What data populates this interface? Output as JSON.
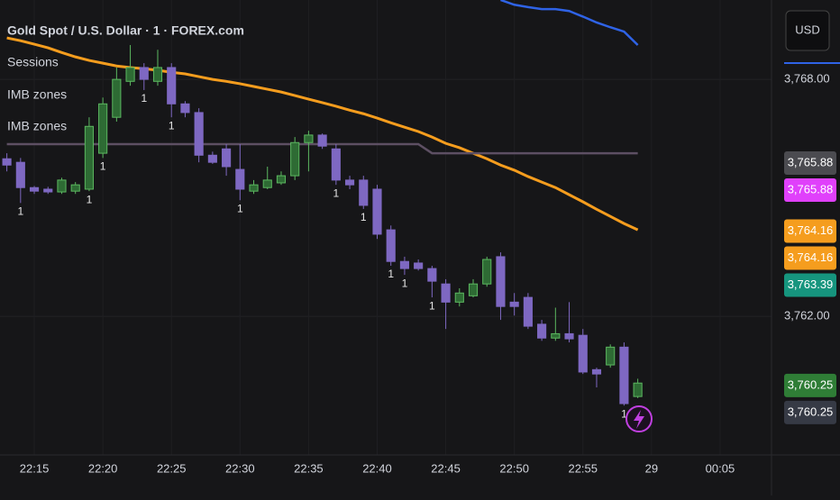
{
  "chart_data": {
    "type": "candlestick",
    "title": "Gold Spot / U.S. Dollar · 1 · FOREX.com",
    "legend_items": [
      "Sessions",
      "IMB zones",
      "IMB zones"
    ],
    "currency": "USD",
    "up_color": "#2e6b34",
    "up_border": "#5cb860",
    "down_color": "#7e68c2",
    "x": [
      13,
      14,
      15,
      16,
      17,
      18,
      19,
      20,
      21,
      22,
      23,
      24,
      25,
      26,
      27,
      28,
      29,
      30,
      31,
      32,
      33,
      34,
      35,
      36,
      37,
      38,
      39,
      40,
      41,
      42,
      43,
      44,
      45,
      46,
      47,
      48,
      49,
      50,
      51,
      52,
      53,
      54,
      55,
      56,
      57,
      58,
      59
    ],
    "open": [
      3765.99,
      3765.9,
      3765.26,
      3765.22,
      3765.15,
      3765.17,
      3765.22,
      3766.13,
      3767.04,
      3767.95,
      3768.3,
      3767.95,
      3768.3,
      3767.38,
      3767.16,
      3766.08,
      3766.24,
      3765.72,
      3765.17,
      3765.26,
      3765.38,
      3765.56,
      3766.4,
      3766.59,
      3766.24,
      3765.45,
      3765.45,
      3765.22,
      3764.19,
      3763.39,
      3763.35,
      3763.21,
      3762.82,
      3762.36,
      3762.52,
      3762.82,
      3763.51,
      3762.36,
      3762.48,
      3761.8,
      3761.45,
      3761.56,
      3761.52,
      3760.65,
      3760.77,
      3761.22,
      3759.97
    ],
    "high": [
      3766.13,
      3766.01,
      3765.3,
      3765.28,
      3765.51,
      3765.4,
      3767.04,
      3767.54,
      3768.3,
      3768.87,
      3768.41,
      3768.75,
      3768.41,
      3767.45,
      3767.27,
      3766.17,
      3766.36,
      3766.36,
      3765.45,
      3765.79,
      3765.67,
      3766.54,
      3766.7,
      3766.63,
      3766.36,
      3765.56,
      3765.56,
      3765.33,
      3764.3,
      3763.51,
      3763.44,
      3763.28,
      3762.94,
      3762.71,
      3762.94,
      3763.51,
      3763.62,
      3762.59,
      3762.59,
      3761.91,
      3762.22,
      3762.36,
      3761.68,
      3760.7,
      3761.29,
      3761.34,
      3760.42
    ],
    "low": [
      3765.67,
      3764.87,
      3765.1,
      3765.1,
      3765.1,
      3765.1,
      3765.17,
      3766.01,
      3766.93,
      3767.84,
      3767.73,
      3767.84,
      3767.04,
      3767.04,
      3765.9,
      3765.86,
      3765.56,
      3764.94,
      3765.1,
      3765.22,
      3765.33,
      3765.45,
      3765.67,
      3766.24,
      3765.33,
      3765.22,
      3764.72,
      3763.96,
      3763.28,
      3763.05,
      3763.16,
      3762.48,
      3761.68,
      3762.25,
      3762.48,
      3762.75,
      3761.91,
      3762.02,
      3761.68,
      3761.38,
      3761.38,
      3761.34,
      3760.54,
      3760.2,
      3760.7,
      3759.74,
      3759.93
    ],
    "close": [
      3765.83,
      3765.26,
      3765.17,
      3765.15,
      3765.45,
      3765.33,
      3766.81,
      3767.38,
      3768.0,
      3768.3,
      3768.0,
      3768.3,
      3767.38,
      3767.16,
      3766.08,
      3765.9,
      3765.79,
      3765.22,
      3765.33,
      3765.45,
      3765.56,
      3766.4,
      3766.59,
      3766.31,
      3765.45,
      3765.33,
      3764.81,
      3764.08,
      3763.39,
      3763.21,
      3763.21,
      3762.89,
      3762.36,
      3762.59,
      3762.82,
      3763.44,
      3762.25,
      3762.25,
      3761.75,
      3761.45,
      3761.56,
      3761.43,
      3760.59,
      3760.54,
      3761.22,
      3759.79,
      3760.31
    ],
    "lines": [
      {
        "color": "#f59d1e",
        "values": [
          3769.05,
          3768.98,
          3768.89,
          3768.8,
          3768.68,
          3768.57,
          3768.48,
          3768.41,
          3768.34,
          3768.3,
          3768.27,
          3768.23,
          3768.18,
          3768.14,
          3768.07,
          3768.0,
          3767.95,
          3767.89,
          3767.82,
          3767.75,
          3767.68,
          3767.59,
          3767.5,
          3767.41,
          3767.32,
          3767.22,
          3767.13,
          3767.02,
          3766.9,
          3766.79,
          3766.68,
          3766.54,
          3766.38,
          3766.27,
          3766.13,
          3765.99,
          3765.83,
          3765.7,
          3765.54,
          3765.4,
          3765.26,
          3765.08,
          3764.9,
          3764.71,
          3764.53,
          3764.35,
          3764.19
        ]
      },
      {
        "color": "#5d4f63",
        "values": [
          3766.36,
          3766.36,
          3766.36,
          3766.36,
          3766.36,
          3766.36,
          3766.36,
          3766.36,
          3766.36,
          3766.36,
          3766.36,
          3766.36,
          3766.36,
          3766.36,
          3766.36,
          3766.36,
          3766.36,
          3766.36,
          3766.36,
          3766.36,
          3766.36,
          3766.36,
          3766.36,
          3766.36,
          3766.36,
          3766.36,
          3766.36,
          3766.36,
          3766.36,
          3766.36,
          3766.36,
          3766.13,
          3766.13,
          3766.13,
          3766.13,
          3766.13,
          3766.13,
          3766.13,
          3766.13,
          3766.13,
          3766.13,
          3766.13,
          3766.13,
          3766.13,
          3766.13,
          3766.13,
          3766.13
        ]
      },
      {
        "color": "#2f63e6",
        "values": [
          null,
          null,
          null,
          null,
          null,
          null,
          null,
          null,
          null,
          null,
          null,
          null,
          null,
          null,
          null,
          null,
          null,
          null,
          null,
          null,
          null,
          null,
          null,
          null,
          null,
          null,
          null,
          null,
          null,
          null,
          null,
          null,
          null,
          null,
          null,
          null,
          3770.01,
          3769.89,
          3769.83,
          3769.78,
          3769.78,
          3769.73,
          3769.59,
          3769.44,
          3769.32,
          3769.21,
          3768.87
        ]
      }
    ],
    "markers": [
      {
        "x": 14,
        "text": "1"
      },
      {
        "x": 19,
        "text": "1"
      },
      {
        "x": 20,
        "text": "1"
      },
      {
        "x": 23,
        "text": "1"
      },
      {
        "x": 25,
        "text": "1"
      },
      {
        "x": 30,
        "text": "1"
      },
      {
        "x": 37,
        "text": "1"
      },
      {
        "x": 39,
        "text": "1"
      },
      {
        "x": 41,
        "text": "1"
      },
      {
        "x": 42,
        "text": "1"
      },
      {
        "x": 44,
        "text": "1"
      },
      {
        "x": 58,
        "text": "1"
      }
    ],
    "xlim": [
      12.5,
      68.75
    ],
    "xticks": [
      {
        "value": 15,
        "label": "22:15"
      },
      {
        "value": 20,
        "label": "22:20"
      },
      {
        "value": 25,
        "label": "22:25"
      },
      {
        "value": 30,
        "label": "22:30"
      },
      {
        "value": 35,
        "label": "22:35"
      },
      {
        "value": 40,
        "label": "22:40"
      },
      {
        "value": 45,
        "label": "22:45"
      },
      {
        "value": 50,
        "label": "22:50"
      },
      {
        "value": 55,
        "label": "22:55"
      },
      {
        "value": 60,
        "label": "29"
      },
      {
        "value": 65,
        "label": "00:05"
      }
    ],
    "ylim": [
      3758.49,
      3770.01
    ],
    "yticks": [
      {
        "value": 3768,
        "label": "3,768.00"
      },
      {
        "value": 3762,
        "label": "3,762.00"
      }
    ],
    "price_labels": [
      {
        "value": 3765.88,
        "label": "3,765.88",
        "color": "#4b4b50"
      },
      {
        "value": 3765.88,
        "label": "3,765.88",
        "color": "#e040fb"
      },
      {
        "value": 3764.16,
        "label": "3,764.16",
        "color": "#f59d1e"
      },
      {
        "value": 3764.16,
        "label": "3,764.16",
        "color": "#f59d1e"
      },
      {
        "value": 3763.39,
        "label": "3,763.39",
        "color": "#16957e"
      },
      {
        "value": 3760.25,
        "label": "3,760.25",
        "color": "#2f7d36"
      },
      {
        "value": 3760.25,
        "label": "3,760.25",
        "color": "#363a45"
      }
    ]
  }
}
